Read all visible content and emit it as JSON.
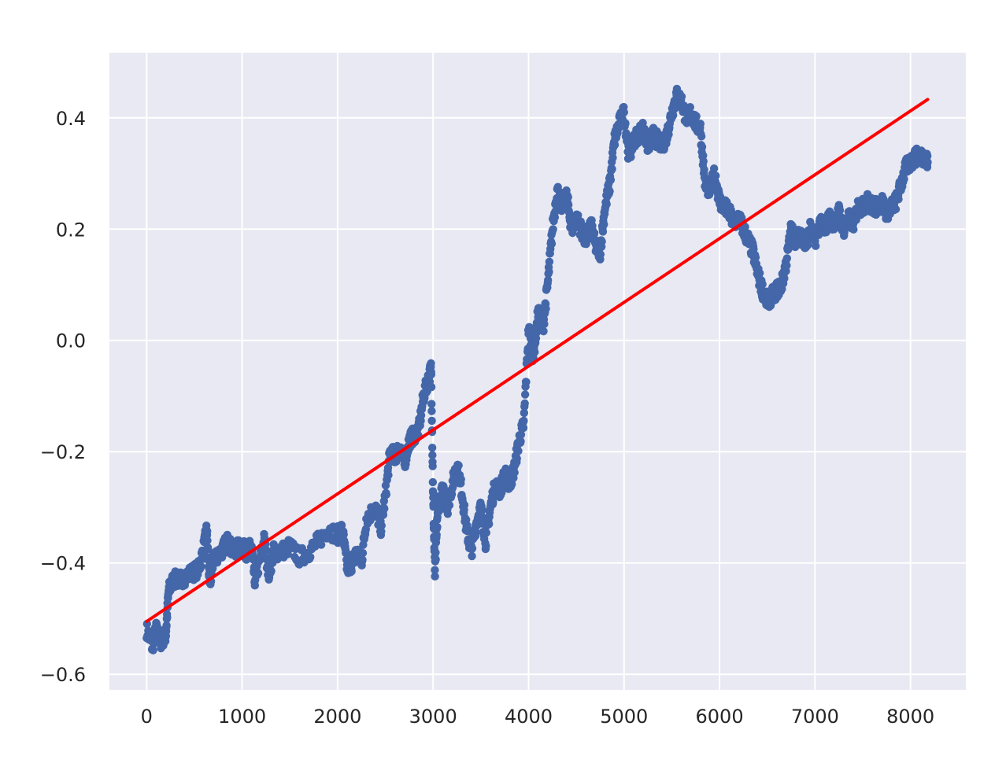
{
  "chart_data": {
    "type": "scatter",
    "title": "",
    "xlabel": "",
    "ylabel": "",
    "xlim": [
      -390,
      8580
    ],
    "ylim": [
      -0.628,
      0.517
    ],
    "x_ticks": [
      0,
      1000,
      2000,
      3000,
      4000,
      5000,
      6000,
      7000,
      8000
    ],
    "x_tick_labels": [
      "0",
      "1000",
      "2000",
      "3000",
      "4000",
      "5000",
      "6000",
      "7000",
      "8000"
    ],
    "y_ticks": [
      -0.6,
      -0.4,
      -0.2,
      0.0,
      0.2,
      0.4
    ],
    "y_tick_labels": [
      "−0.6",
      "−0.4",
      "−0.2",
      "0.0",
      "0.2",
      "0.4"
    ],
    "grid": true,
    "background": "#e8e9f2",
    "series": [
      {
        "type": "scatter",
        "color": "#4467a9",
        "points": [
          [
            0,
            -0.52
          ],
          [
            60,
            -0.55
          ],
          [
            100,
            -0.52
          ],
          [
            150,
            -0.54
          ],
          [
            200,
            -0.53
          ],
          [
            230,
            -0.45
          ],
          [
            280,
            -0.43
          ],
          [
            350,
            -0.43
          ],
          [
            450,
            -0.42
          ],
          [
            550,
            -0.41
          ],
          [
            600,
            -0.37
          ],
          [
            630,
            -0.34
          ],
          [
            660,
            -0.44
          ],
          [
            700,
            -0.39
          ],
          [
            780,
            -0.38
          ],
          [
            850,
            -0.36
          ],
          [
            900,
            -0.38
          ],
          [
            980,
            -0.37
          ],
          [
            1050,
            -0.38
          ],
          [
            1100,
            -0.37
          ],
          [
            1130,
            -0.43
          ],
          [
            1180,
            -0.4
          ],
          [
            1230,
            -0.36
          ],
          [
            1280,
            -0.42
          ],
          [
            1330,
            -0.38
          ],
          [
            1400,
            -0.38
          ],
          [
            1500,
            -0.37
          ],
          [
            1600,
            -0.39
          ],
          [
            1700,
            -0.38
          ],
          [
            1800,
            -0.36
          ],
          [
            1900,
            -0.34
          ],
          [
            2000,
            -0.35
          ],
          [
            2050,
            -0.34
          ],
          [
            2100,
            -0.41
          ],
          [
            2150,
            -0.4
          ],
          [
            2200,
            -0.38
          ],
          [
            2250,
            -0.4
          ],
          [
            2300,
            -0.32
          ],
          [
            2400,
            -0.3
          ],
          [
            2450,
            -0.34
          ],
          [
            2500,
            -0.28
          ],
          [
            2550,
            -0.2
          ],
          [
            2600,
            -0.21
          ],
          [
            2650,
            -0.19
          ],
          [
            2700,
            -0.22
          ],
          [
            2750,
            -0.18
          ],
          [
            2800,
            -0.17
          ],
          [
            2850,
            -0.16
          ],
          [
            2900,
            -0.1
          ],
          [
            2950,
            -0.07
          ],
          [
            2980,
            -0.05
          ],
          [
            3000,
            -0.28
          ],
          [
            3020,
            -0.42
          ],
          [
            3050,
            -0.3
          ],
          [
            3100,
            -0.27
          ],
          [
            3150,
            -0.3
          ],
          [
            3200,
            -0.26
          ],
          [
            3250,
            -0.22
          ],
          [
            3300,
            -0.27
          ],
          [
            3350,
            -0.34
          ],
          [
            3400,
            -0.38
          ],
          [
            3450,
            -0.33
          ],
          [
            3500,
            -0.3
          ],
          [
            3550,
            -0.36
          ],
          [
            3600,
            -0.3
          ],
          [
            3650,
            -0.26
          ],
          [
            3700,
            -0.27
          ],
          [
            3750,
            -0.24
          ],
          [
            3800,
            -0.26
          ],
          [
            3850,
            -0.23
          ],
          [
            3900,
            -0.18
          ],
          [
            3950,
            -0.15
          ],
          [
            4000,
            0.02
          ],
          [
            4050,
            -0.03
          ],
          [
            4100,
            0.05
          ],
          [
            4150,
            0.02
          ],
          [
            4200,
            0.1
          ],
          [
            4250,
            0.2
          ],
          [
            4300,
            0.27
          ],
          [
            4350,
            0.24
          ],
          [
            4400,
            0.26
          ],
          [
            4450,
            0.2
          ],
          [
            4500,
            0.22
          ],
          [
            4550,
            0.2
          ],
          [
            4600,
            0.18
          ],
          [
            4650,
            0.21
          ],
          [
            4700,
            0.17
          ],
          [
            4750,
            0.16
          ],
          [
            4800,
            0.24
          ],
          [
            4850,
            0.28
          ],
          [
            4900,
            0.36
          ],
          [
            4950,
            0.39
          ],
          [
            5000,
            0.41
          ],
          [
            5050,
            0.33
          ],
          [
            5100,
            0.36
          ],
          [
            5150,
            0.37
          ],
          [
            5200,
            0.38
          ],
          [
            5250,
            0.35
          ],
          [
            5300,
            0.37
          ],
          [
            5350,
            0.36
          ],
          [
            5400,
            0.35
          ],
          [
            5450,
            0.37
          ],
          [
            5500,
            0.41
          ],
          [
            5550,
            0.44
          ],
          [
            5600,
            0.43
          ],
          [
            5650,
            0.4
          ],
          [
            5700,
            0.41
          ],
          [
            5750,
            0.39
          ],
          [
            5800,
            0.38
          ],
          [
            5850,
            0.28
          ],
          [
            5900,
            0.27
          ],
          [
            5950,
            0.3
          ],
          [
            6000,
            0.25
          ],
          [
            6050,
            0.24
          ],
          [
            6100,
            0.23
          ],
          [
            6150,
            0.21
          ],
          [
            6200,
            0.22
          ],
          [
            6250,
            0.2
          ],
          [
            6300,
            0.18
          ],
          [
            6350,
            0.16
          ],
          [
            6400,
            0.12
          ],
          [
            6450,
            0.09
          ],
          [
            6500,
            0.07
          ],
          [
            6550,
            0.08
          ],
          [
            6600,
            0.09
          ],
          [
            6650,
            0.1
          ],
          [
            6700,
            0.14
          ],
          [
            6750,
            0.2
          ],
          [
            6800,
            0.18
          ],
          [
            6850,
            0.19
          ],
          [
            6900,
            0.17
          ],
          [
            6950,
            0.2
          ],
          [
            7000,
            0.18
          ],
          [
            7050,
            0.21
          ],
          [
            7100,
            0.2
          ],
          [
            7150,
            0.22
          ],
          [
            7200,
            0.21
          ],
          [
            7250,
            0.23
          ],
          [
            7300,
            0.2
          ],
          [
            7350,
            0.22
          ],
          [
            7400,
            0.21
          ],
          [
            7450,
            0.24
          ],
          [
            7500,
            0.24
          ],
          [
            7550,
            0.25
          ],
          [
            7600,
            0.24
          ],
          [
            7650,
            0.24
          ],
          [
            7700,
            0.25
          ],
          [
            7750,
            0.23
          ],
          [
            7800,
            0.24
          ],
          [
            7850,
            0.25
          ],
          [
            7900,
            0.28
          ],
          [
            7950,
            0.31
          ],
          [
            8000,
            0.32
          ],
          [
            8050,
            0.33
          ],
          [
            8100,
            0.33
          ],
          [
            8150,
            0.33
          ],
          [
            8180,
            0.32
          ]
        ]
      },
      {
        "type": "line",
        "color": "#ff0000",
        "x": [
          0,
          8180
        ],
        "y": [
          -0.505,
          0.433
        ]
      }
    ]
  }
}
